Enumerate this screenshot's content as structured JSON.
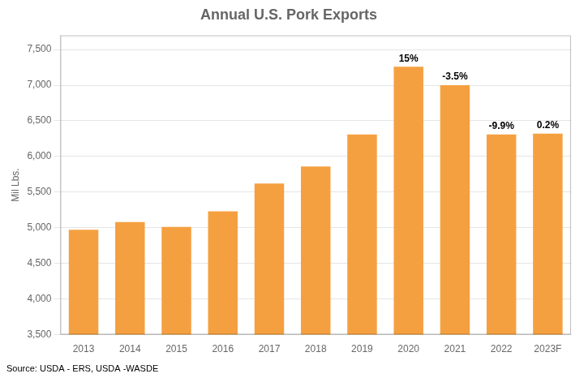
{
  "chart_data": {
    "type": "bar",
    "title": "Annual U.S. Pork Exports",
    "ylabel": "Mil Lbs.",
    "source": "Source: USDA - ERS, USDA -WASDE",
    "categories": [
      "2013",
      "2014",
      "2015",
      "2016",
      "2017",
      "2018",
      "2019",
      "2020",
      "2021",
      "2022",
      "2023F"
    ],
    "values": [
      4970,
      5080,
      5010,
      5230,
      5620,
      5860,
      6310,
      7260,
      7000,
      6310,
      6320
    ],
    "color": "#F5A040",
    "ylim": [
      3500,
      7700
    ],
    "yticks": [
      {
        "value": 3500,
        "label": "3,500"
      },
      {
        "value": 4000,
        "label": "4,000"
      },
      {
        "value": 4500,
        "label": "4,500"
      },
      {
        "value": 5000,
        "label": "5,000"
      },
      {
        "value": 5500,
        "label": "5,500"
      },
      {
        "value": 6000,
        "label": "6,000"
      },
      {
        "value": 6500,
        "label": "6,500"
      },
      {
        "value": 7000,
        "label": "7,000"
      },
      {
        "value": 7500,
        "label": "7,500"
      }
    ],
    "grid": true,
    "annotations": [
      {
        "category": "2020",
        "label": "15%"
      },
      {
        "category": "2021",
        "label": "-3.5%"
      },
      {
        "category": "2022",
        "label": "-9.9%"
      },
      {
        "category": "2023F",
        "label": "0.2%"
      }
    ]
  }
}
